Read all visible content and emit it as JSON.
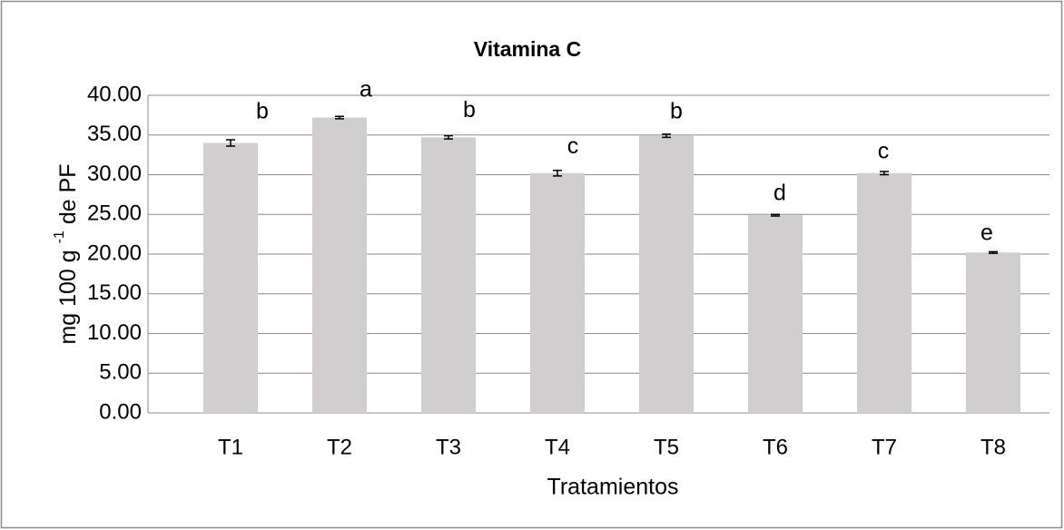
{
  "chart_data": {
    "type": "bar",
    "title": "Vitamina C",
    "x_label": "Tratamientos",
    "y_label": {
      "text": "mg 100 g",
      "superscript": "-1",
      "suffix": "de PF"
    },
    "categories": [
      "T1",
      "T2",
      "T3",
      "T4",
      "T5",
      "T6",
      "T7",
      "T8"
    ],
    "values": [
      34.0,
      37.2,
      34.7,
      30.2,
      34.9,
      24.9,
      30.2,
      20.2
    ],
    "errors": [
      0.4,
      0.15,
      0.2,
      0.35,
      0.2,
      0.1,
      0.2,
      0.1
    ],
    "annotations": [
      "b",
      "a",
      "b",
      "c",
      "b",
      "d",
      "c",
      "e"
    ],
    "color": "#d0cece",
    "ylim": [
      0,
      40
    ],
    "yticks": [
      {
        "value": 0,
        "label": "0.00"
      },
      {
        "value": 5,
        "label": "5.00"
      },
      {
        "value": 10,
        "label": "10.00"
      },
      {
        "value": 15,
        "label": "15.00"
      },
      {
        "value": 20,
        "label": "20.00"
      },
      {
        "value": 25,
        "label": "25.00"
      },
      {
        "value": 30,
        "label": "30.00"
      },
      {
        "value": 35,
        "label": "35.00"
      },
      {
        "value": 40,
        "label": "40.00"
      }
    ],
    "grid": true
  }
}
